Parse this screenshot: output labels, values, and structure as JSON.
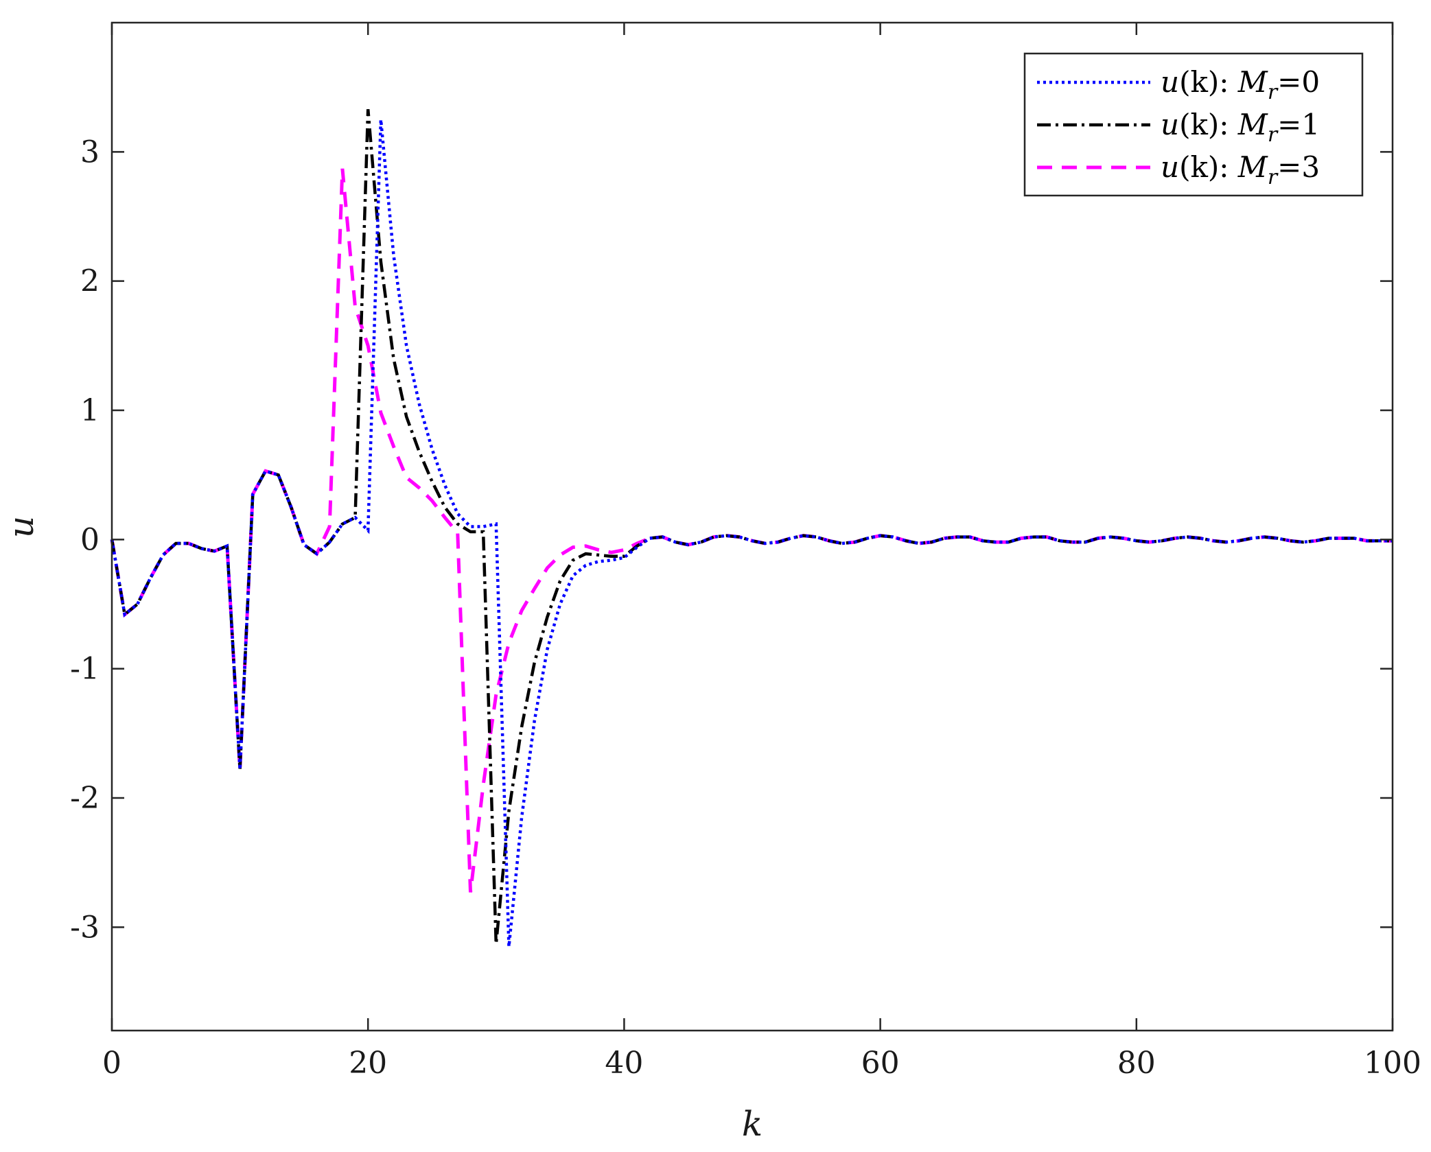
{
  "chart_data": {
    "type": "line",
    "xlabel": "k",
    "ylabel": "u",
    "xlim": [
      0,
      100
    ],
    "ylim": [
      -3.8,
      4.0
    ],
    "xticks": [
      0,
      20,
      40,
      60,
      80,
      100
    ],
    "yticks": [
      -3,
      -2,
      -1,
      0,
      1,
      2,
      3
    ],
    "xtick_labels": [
      "0",
      "20",
      "40",
      "60",
      "80",
      "100"
    ],
    "ytick_labels": [
      "-3",
      "-2",
      "-1",
      "0",
      "1",
      "2",
      "3"
    ],
    "grid": false,
    "legend_position": "top-right",
    "series": [
      {
        "name": "u(k): M_r=0",
        "legend": {
          "pre": "u",
          "paren": "(k): ",
          "var": "M",
          "sub": "r",
          "post": "=0"
        },
        "color": "#0000ff",
        "style": "dotted",
        "x": [
          0,
          1,
          2,
          3,
          4,
          5,
          6,
          7,
          8,
          9,
          10,
          11,
          12,
          13,
          14,
          15,
          16,
          17,
          18,
          19,
          20,
          21,
          22,
          23,
          24,
          25,
          26,
          27,
          28,
          29,
          30,
          31,
          32,
          33,
          34,
          35,
          36,
          37,
          38,
          39,
          40,
          41,
          42,
          43,
          44,
          45,
          46,
          47,
          48,
          49,
          50,
          51,
          52,
          53,
          54,
          55,
          56,
          57,
          58,
          59,
          60,
          61,
          62,
          63,
          64,
          65,
          66,
          67,
          68,
          69,
          70,
          71,
          72,
          73,
          74,
          75,
          76,
          77,
          78,
          79,
          80,
          81,
          82,
          83,
          84,
          85,
          86,
          87,
          88,
          89,
          90,
          91,
          92,
          93,
          94,
          95,
          96,
          97,
          98,
          99,
          100
        ],
        "y": [
          0,
          -0.58,
          -0.5,
          -0.3,
          -0.12,
          -0.03,
          -0.03,
          -0.07,
          -0.09,
          -0.05,
          -1.78,
          0.35,
          0.53,
          0.5,
          0.25,
          -0.04,
          -0.11,
          -0.02,
          0.12,
          0.17,
          0.07,
          3.25,
          2.2,
          1.5,
          1.05,
          0.7,
          0.42,
          0.2,
          0.1,
          0.1,
          0.12,
          -3.15,
          -2.15,
          -1.4,
          -0.85,
          -0.5,
          -0.28,
          -0.2,
          -0.17,
          -0.16,
          -0.14,
          -0.06,
          0.01,
          0.02,
          -0.02,
          -0.04,
          -0.02,
          0.02,
          0.03,
          0.02,
          -0.01,
          -0.03,
          -0.02,
          0.01,
          0.03,
          0.02,
          -0.01,
          -0.03,
          -0.02,
          0.01,
          0.03,
          0.02,
          -0.01,
          -0.03,
          -0.02,
          0.01,
          0.02,
          0.02,
          -0.01,
          -0.02,
          -0.02,
          0.01,
          0.02,
          0.02,
          -0.01,
          -0.02,
          -0.02,
          0.01,
          0.02,
          0.01,
          -0.01,
          -0.02,
          -0.01,
          0.01,
          0.02,
          0.01,
          -0.01,
          -0.02,
          -0.01,
          0.01,
          0.02,
          0.01,
          -0.01,
          -0.02,
          -0.01,
          0.01,
          0.01,
          0.01,
          -0.01,
          -0.01,
          -0.01
        ]
      },
      {
        "name": "u(k): M_r=1",
        "legend": {
          "pre": "u",
          "paren": "(k): ",
          "var": "M",
          "sub": "r",
          "post": "=1"
        },
        "color": "#000000",
        "style": "dashdot",
        "x": [
          0,
          1,
          2,
          3,
          4,
          5,
          6,
          7,
          8,
          9,
          10,
          11,
          12,
          13,
          14,
          15,
          16,
          17,
          18,
          19,
          20,
          21,
          22,
          23,
          24,
          25,
          26,
          27,
          28,
          29,
          30,
          31,
          32,
          33,
          34,
          35,
          36,
          37,
          38,
          39,
          40,
          41,
          42,
          43,
          44,
          45,
          46,
          47,
          48,
          49,
          50,
          51,
          52,
          53,
          54,
          55,
          56,
          57,
          58,
          59,
          60,
          61,
          62,
          63,
          64,
          65,
          66,
          67,
          68,
          69,
          70,
          71,
          72,
          73,
          74,
          75,
          76,
          77,
          78,
          79,
          80,
          81,
          82,
          83,
          84,
          85,
          86,
          87,
          88,
          89,
          90,
          91,
          92,
          93,
          94,
          95,
          96,
          97,
          98,
          99,
          100
        ],
        "y": [
          0,
          -0.58,
          -0.5,
          -0.3,
          -0.12,
          -0.03,
          -0.03,
          -0.07,
          -0.09,
          -0.05,
          -1.78,
          0.35,
          0.53,
          0.5,
          0.25,
          -0.04,
          -0.11,
          -0.02,
          0.12,
          0.17,
          3.33,
          2.15,
          1.4,
          0.95,
          0.68,
          0.45,
          0.25,
          0.12,
          0.06,
          0.06,
          -3.13,
          -2.1,
          -1.45,
          -0.95,
          -0.6,
          -0.32,
          -0.16,
          -0.11,
          -0.12,
          -0.13,
          -0.13,
          -0.05,
          0.01,
          0.02,
          -0.02,
          -0.04,
          -0.02,
          0.02,
          0.03,
          0.02,
          -0.01,
          -0.03,
          -0.02,
          0.01,
          0.03,
          0.02,
          -0.01,
          -0.03,
          -0.02,
          0.01,
          0.03,
          0.02,
          -0.01,
          -0.03,
          -0.02,
          0.01,
          0.02,
          0.02,
          -0.01,
          -0.02,
          -0.02,
          0.01,
          0.02,
          0.02,
          -0.01,
          -0.02,
          -0.02,
          0.01,
          0.02,
          0.01,
          -0.01,
          -0.02,
          -0.01,
          0.01,
          0.02,
          0.01,
          -0.01,
          -0.02,
          -0.01,
          0.01,
          0.02,
          0.01,
          -0.01,
          -0.02,
          -0.01,
          0.01,
          0.01,
          0.01,
          -0.01,
          -0.01,
          -0.01
        ]
      },
      {
        "name": "u(k): M_r=3",
        "legend": {
          "pre": "u",
          "paren": "(k): ",
          "var": "M",
          "sub": "r",
          "post": "=3"
        },
        "color": "#ff00ff",
        "style": "dashed",
        "x": [
          0,
          1,
          2,
          3,
          4,
          5,
          6,
          7,
          8,
          9,
          10,
          11,
          12,
          13,
          14,
          15,
          16,
          17,
          18,
          19,
          20,
          21,
          22,
          23,
          24,
          25,
          26,
          27,
          28,
          29,
          30,
          31,
          32,
          33,
          34,
          35,
          36,
          37,
          38,
          39,
          40,
          41,
          42,
          43,
          44,
          45,
          46,
          47,
          48,
          49,
          50,
          51,
          52,
          53,
          54,
          55,
          56,
          57,
          58,
          59,
          60,
          61,
          62,
          63,
          64,
          65,
          66,
          67,
          68,
          69,
          70,
          71,
          72,
          73,
          74,
          75,
          76,
          77,
          78,
          79,
          80,
          81,
          82,
          83,
          84,
          85,
          86,
          87,
          88,
          89,
          90,
          91,
          92,
          93,
          94,
          95,
          96,
          97,
          98,
          99,
          100
        ],
        "y": [
          0,
          -0.58,
          -0.5,
          -0.3,
          -0.12,
          -0.03,
          -0.03,
          -0.07,
          -0.09,
          -0.05,
          -1.78,
          0.35,
          0.53,
          0.5,
          0.25,
          -0.04,
          -0.11,
          0.1,
          2.87,
          1.8,
          1.5,
          0.98,
          0.72,
          0.48,
          0.4,
          0.3,
          0.17,
          0.05,
          -2.73,
          -1.9,
          -1.2,
          -0.8,
          -0.55,
          -0.38,
          -0.22,
          -0.12,
          -0.06,
          -0.05,
          -0.08,
          -0.1,
          -0.08,
          -0.03,
          0.01,
          0.02,
          -0.02,
          -0.04,
          -0.02,
          0.02,
          0.03,
          0.02,
          -0.01,
          -0.03,
          -0.02,
          0.01,
          0.03,
          0.02,
          -0.01,
          -0.03,
          -0.02,
          0.01,
          0.03,
          0.02,
          -0.01,
          -0.03,
          -0.02,
          0.01,
          0.02,
          0.02,
          -0.01,
          -0.02,
          -0.02,
          0.01,
          0.02,
          0.02,
          -0.01,
          -0.02,
          -0.02,
          0.01,
          0.02,
          0.01,
          -0.01,
          -0.02,
          -0.01,
          0.01,
          0.02,
          0.01,
          -0.01,
          -0.02,
          -0.01,
          0.01,
          0.02,
          0.01,
          -0.01,
          -0.02,
          -0.01,
          0.01,
          0.01,
          0.01,
          -0.01,
          -0.01,
          -0.01
        ]
      }
    ]
  }
}
